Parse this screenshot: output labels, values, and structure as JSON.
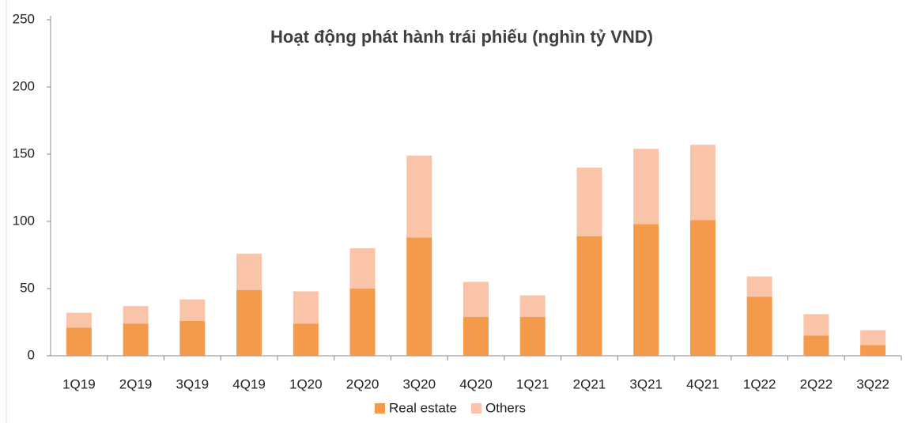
{
  "chart_data": {
    "type": "stacked_bar",
    "title": "Hoạt động phát hành trái phiếu (nghìn tỷ VND)",
    "categories": [
      "1Q19",
      "2Q19",
      "3Q19",
      "4Q19",
      "1Q20",
      "2Q20",
      "3Q20",
      "4Q20",
      "1Q21",
      "2Q21",
      "3Q21",
      "4Q21",
      "1Q22",
      "2Q22",
      "3Q22"
    ],
    "series": [
      {
        "name": "Real estate",
        "color": "#f5994a",
        "values": [
          21,
          24,
          26,
          49,
          24,
          50,
          88,
          29,
          29,
          89,
          98,
          101,
          44,
          15,
          8
        ]
      },
      {
        "name": "Others",
        "color": "#f9c4a8",
        "values": [
          11,
          13,
          16,
          27,
          24,
          30,
          61,
          26,
          16,
          51,
          56,
          56,
          15,
          16,
          11
        ]
      }
    ],
    "ylim": [
      0,
      250
    ],
    "yticks": [
      0,
      50,
      100,
      150,
      200,
      250
    ],
    "legend": "bottom",
    "grid": false
  }
}
